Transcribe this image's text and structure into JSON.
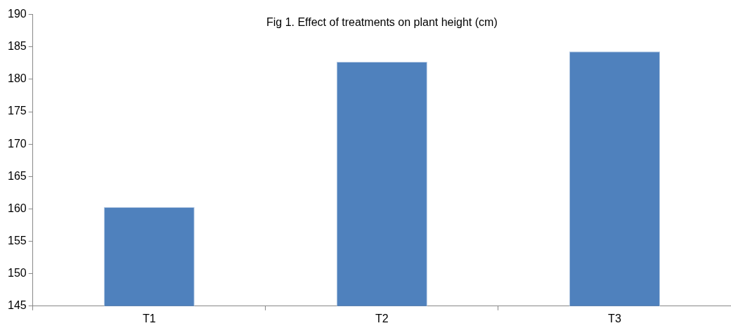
{
  "chart_data": {
    "type": "bar",
    "title": "Fig 1. Effect of treatments on plant height (cm)",
    "categories": [
      "T1",
      "T2",
      "T3"
    ],
    "values": [
      160.3,
      182.7,
      184.3
    ],
    "color": "#4f81bd",
    "ylim": [
      145,
      190
    ],
    "yticks": [
      145,
      150,
      155,
      160,
      165,
      170,
      175,
      180,
      185,
      190
    ],
    "grid": false,
    "legend": false
  }
}
